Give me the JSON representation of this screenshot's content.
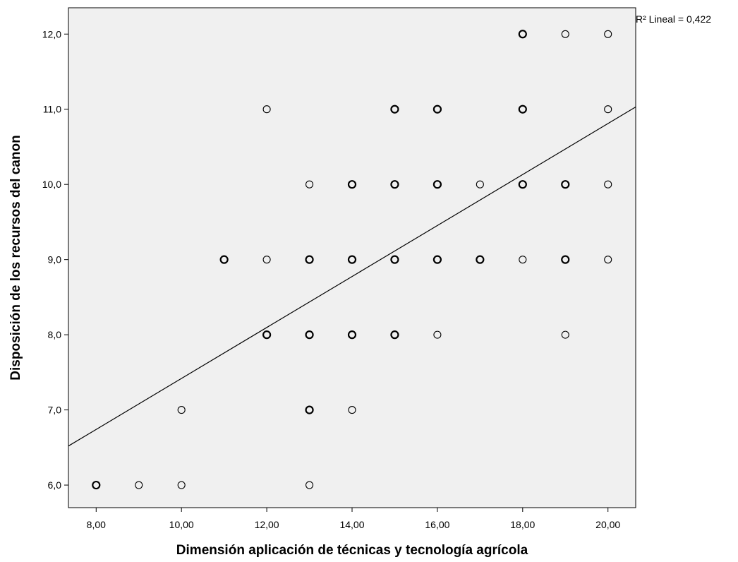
{
  "chart_data": {
    "type": "scatter",
    "xlabel": "Dimensión aplicación de técnicas y tecnología agrícola",
    "ylabel": "Disposición de los recursos del canon",
    "xlim": [
      7.35,
      20.65
    ],
    "ylim": [
      5.7,
      12.35
    ],
    "x_ticks": [
      8,
      10,
      12,
      14,
      16,
      18,
      20
    ],
    "x_tick_labels": [
      "8,00",
      "10,00",
      "12,00",
      "14,00",
      "16,00",
      "18,00",
      "20,00"
    ],
    "y_ticks": [
      6,
      7,
      8,
      9,
      10,
      11,
      12
    ],
    "y_tick_labels": [
      "6,0",
      "7,0",
      "8,0",
      "9,0",
      "10,0",
      "11,0",
      "12,0"
    ],
    "points": [
      {
        "x": 8,
        "y": 6,
        "bold": true
      },
      {
        "x": 9,
        "y": 6,
        "bold": false
      },
      {
        "x": 10,
        "y": 6,
        "bold": false
      },
      {
        "x": 13,
        "y": 6,
        "bold": false
      },
      {
        "x": 10,
        "y": 7,
        "bold": false
      },
      {
        "x": 13,
        "y": 7,
        "bold": true
      },
      {
        "x": 14,
        "y": 7,
        "bold": false
      },
      {
        "x": 12,
        "y": 8,
        "bold": true
      },
      {
        "x": 13,
        "y": 8,
        "bold": true
      },
      {
        "x": 14,
        "y": 8,
        "bold": true
      },
      {
        "x": 15,
        "y": 8,
        "bold": true
      },
      {
        "x": 16,
        "y": 8,
        "bold": false
      },
      {
        "x": 19,
        "y": 8,
        "bold": false
      },
      {
        "x": 11,
        "y": 9,
        "bold": true
      },
      {
        "x": 12,
        "y": 9,
        "bold": false
      },
      {
        "x": 13,
        "y": 9,
        "bold": true
      },
      {
        "x": 14,
        "y": 9,
        "bold": true
      },
      {
        "x": 15,
        "y": 9,
        "bold": true
      },
      {
        "x": 16,
        "y": 9,
        "bold": true
      },
      {
        "x": 17,
        "y": 9,
        "bold": true
      },
      {
        "x": 18,
        "y": 9,
        "bold": false
      },
      {
        "x": 19,
        "y": 9,
        "bold": true
      },
      {
        "x": 20,
        "y": 9,
        "bold": false
      },
      {
        "x": 13,
        "y": 10,
        "bold": false
      },
      {
        "x": 14,
        "y": 10,
        "bold": true
      },
      {
        "x": 15,
        "y": 10,
        "bold": true
      },
      {
        "x": 16,
        "y": 10,
        "bold": true
      },
      {
        "x": 17,
        "y": 10,
        "bold": false
      },
      {
        "x": 18,
        "y": 10,
        "bold": true
      },
      {
        "x": 19,
        "y": 10,
        "bold": true
      },
      {
        "x": 20,
        "y": 10,
        "bold": false
      },
      {
        "x": 12,
        "y": 11,
        "bold": false
      },
      {
        "x": 15,
        "y": 11,
        "bold": true
      },
      {
        "x": 16,
        "y": 11,
        "bold": true
      },
      {
        "x": 18,
        "y": 11,
        "bold": true
      },
      {
        "x": 20,
        "y": 11,
        "bold": false
      },
      {
        "x": 18,
        "y": 12,
        "bold": true
      },
      {
        "x": 19,
        "y": 12,
        "bold": false
      },
      {
        "x": 20,
        "y": 12,
        "bold": false
      }
    ],
    "fit_line": {
      "x": [
        7.35,
        20.65
      ],
      "y": [
        6.52,
        11.03
      ]
    },
    "r2_label": "R² Lineal = 0,422",
    "grid": false,
    "colors": {
      "plot_background": "#f0f0f0",
      "marker": "#000000",
      "line": "#000000"
    }
  }
}
